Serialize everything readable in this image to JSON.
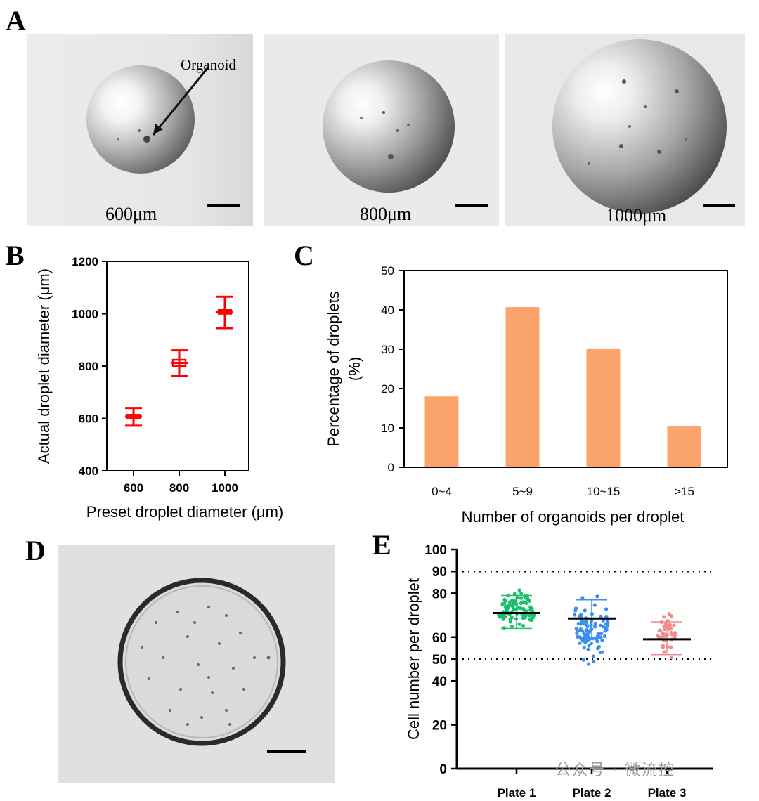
{
  "panels": {
    "a": {
      "letter": "A",
      "annotation": "Organoid",
      "labels": [
        "600μm",
        "800μm",
        "1000μm"
      ]
    },
    "b": {
      "letter": "B"
    },
    "c": {
      "letter": "C"
    },
    "d": {
      "letter": "D"
    },
    "e": {
      "letter": "E"
    }
  },
  "watermark": "公众号 · 微流控",
  "chart_data": [
    {
      "id": "B",
      "type": "scatter",
      "xlabel": "Preset droplet diameter (μm)",
      "ylabel": "Actual droplet diameter (μm)",
      "ylim": [
        400,
        1200
      ],
      "y_ticks": [
        400,
        600,
        800,
        1000,
        1200
      ],
      "categories": [
        "600",
        "800",
        "1000"
      ],
      "series": [
        {
          "color": "#ff0000",
          "mean": [
            607,
            812,
            1007
          ],
          "box_low": [
            600,
            800,
            1000
          ],
          "box_high": [
            614,
            824,
            1014
          ],
          "err_low": [
            572,
            762,
            945
          ],
          "err_high": [
            640,
            860,
            1065
          ]
        }
      ],
      "grid": false
    },
    {
      "id": "C",
      "type": "bar",
      "xlabel": "Number of organoids per droplet",
      "ylabel": "Percentage of droplets",
      "ylabel2": "(%)",
      "categories": [
        "0~4",
        "5~9",
        "10~15",
        ">15"
      ],
      "values": [
        18,
        40.7,
        30.2,
        10.5
      ],
      "ylim": [
        0,
        50
      ],
      "y_ticks": [
        0,
        10,
        20,
        30,
        40,
        50
      ],
      "bar_color": "#fba46c",
      "grid": false
    },
    {
      "id": "E",
      "type": "scatter",
      "ylabel": "Cell number per droplet",
      "categories": [
        "Plate 1",
        "Plate 2",
        "Plate 3"
      ],
      "ylim": [
        0,
        100
      ],
      "y_ticks": [
        0,
        20,
        40,
        50,
        60,
        80,
        90,
        100
      ],
      "reference_lines": [
        50,
        90
      ],
      "series": [
        {
          "color": "#1cbf6a",
          "mean": 71,
          "sd_low": 64,
          "sd_high": 79,
          "min": 62,
          "max": 85
        },
        {
          "color": "#3a8ff0",
          "mean": 68.5,
          "sd_low": 60,
          "sd_high": 77,
          "min": 45,
          "max": 82
        },
        {
          "color": "#f08a8a",
          "mean": 59,
          "sd_low": 52,
          "sd_high": 67,
          "min": 49,
          "max": 75
        }
      ],
      "grid": false
    }
  ]
}
